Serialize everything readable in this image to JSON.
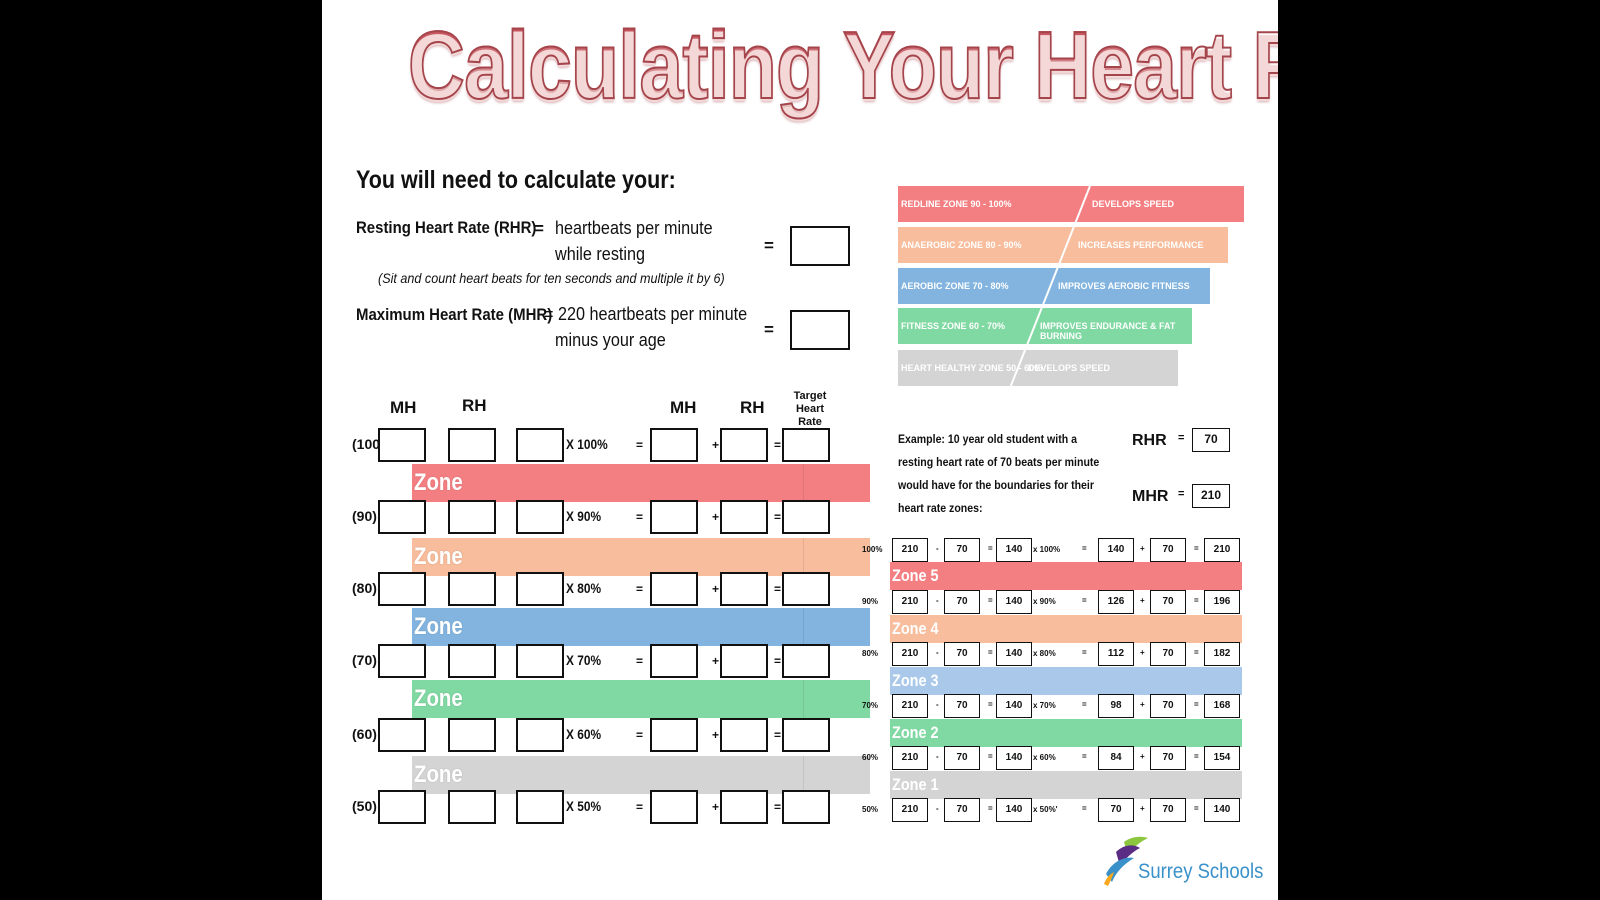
{
  "title": "Calculating Your Heart Rate Zones",
  "intro": {
    "heading": "You will need to calculate your:",
    "rhr_label": "Resting Heart Rate (RHR)",
    "rhr_eq": "=",
    "rhr_def_1": "heartbeats per minute",
    "rhr_def_2": "while resting",
    "rhr_note": "(Sit and count heart beats for ten seconds and multiple it by 6)",
    "mhr_label": "Maximum Heart Rate (MHR)",
    "mhr_def_1": "= 220 heartbeats per minute",
    "mhr_def_2": "minus your age",
    "result_eq": "="
  },
  "worksheet": {
    "col_mh": "MH",
    "col_rh": "RH",
    "col_mh2": "MH",
    "col_rh2": "RH",
    "col_thr_1": "Target Heart",
    "col_thr_2": "Rate",
    "minus": "-",
    "equals": "=",
    "plus": "+",
    "rows": [
      {
        "label": "(100",
        "pct": "X 100%"
      },
      {
        "label": "(90)",
        "pct": "X 90%"
      },
      {
        "label": "(80)",
        "pct": "X 80%"
      },
      {
        "label": "(70)",
        "pct": "X 70%"
      },
      {
        "label": "(60)",
        "pct": "X 60%"
      },
      {
        "label": "(50)",
        "pct": "X 50%"
      }
    ],
    "bands": [
      {
        "label": "Zone",
        "color": "#f47f82"
      },
      {
        "label": "Zone",
        "color": "#f7bd9c"
      },
      {
        "label": "Zone",
        "color": "#82b4df"
      },
      {
        "label": "Zone",
        "color": "#80d8a2"
      },
      {
        "label": "Zone",
        "color": "#d4d4d4"
      }
    ]
  },
  "pyramid": [
    {
      "left": "REDLINE ZONE 90 - 100%",
      "right": "DEVELOPS SPEED",
      "color": "#f47f82"
    },
    {
      "left": "ANAEROBIC ZONE 80 - 90%",
      "right": "INCREASES PERFORMANCE",
      "color": "#f7bd9c"
    },
    {
      "left": "AEROBIC ZONE 70 - 80%",
      "right": "IMPROVES AEROBIC FITNESS",
      "color": "#82b4df"
    },
    {
      "left": "FITNESS ZONE 60 - 70%",
      "right": "IMPROVES ENDURANCE & FAT BURNING",
      "color": "#80d8a2"
    },
    {
      "left": "HEART HEALTHY ZONE  50 - 60%",
      "right": "DEVELOPS SPEED",
      "color": "#d4d4d4"
    }
  ],
  "example": {
    "text": "Example: 10 year old student with a resting heart rate of 70 beats per minute would have for the boundaries for their heart rate zones:",
    "rhr_label": "RHR",
    "rhr_value": "70",
    "mhr_label": "MHR",
    "mhr_value": "210",
    "eq": "=",
    "minus": "-",
    "equals": "=",
    "plus": "+",
    "rows": [
      {
        "label": "100%",
        "mh": "210",
        "rh": "70",
        "diff": "140",
        "pct": "x 100%",
        "prod": "140",
        "rh2": "70",
        "thr": "210"
      },
      {
        "label": "90%",
        "mh": "210",
        "rh": "70",
        "diff": "140",
        "pct": "x 90%",
        "prod": "126",
        "rh2": "70",
        "thr": "196"
      },
      {
        "label": "80%",
        "mh": "210",
        "rh": "70",
        "diff": "140",
        "pct": "x 80%",
        "prod": "112",
        "rh2": "70",
        "thr": "182"
      },
      {
        "label": "70%",
        "mh": "210",
        "rh": "70",
        "diff": "140",
        "pct": "x 70%",
        "prod": "98",
        "rh2": "70",
        "thr": "168"
      },
      {
        "label": "60%",
        "mh": "210",
        "rh": "70",
        "diff": "140",
        "pct": "x 60%",
        "prod": "84",
        "rh2": "70",
        "thr": "154"
      },
      {
        "label": "50%",
        "mh": "210",
        "rh": "70",
        "diff": "140",
        "pct": "x 50%'",
        "prod": "70",
        "rh2": "70",
        "thr": "140"
      }
    ],
    "bands": [
      {
        "label": "Zone 5",
        "color": "#f47f82"
      },
      {
        "label": "Zone 4",
        "color": "#f7bd9c"
      },
      {
        "label": "Zone 3",
        "color": "#a9c8ea"
      },
      {
        "label": "Zone 2",
        "color": "#80d8a2"
      },
      {
        "label": "Zone 1",
        "color": "#d4d4d4"
      }
    ]
  },
  "logo": {
    "text": "Surrey Schools",
    "icon": "surrey-schools-leaf-icon"
  }
}
